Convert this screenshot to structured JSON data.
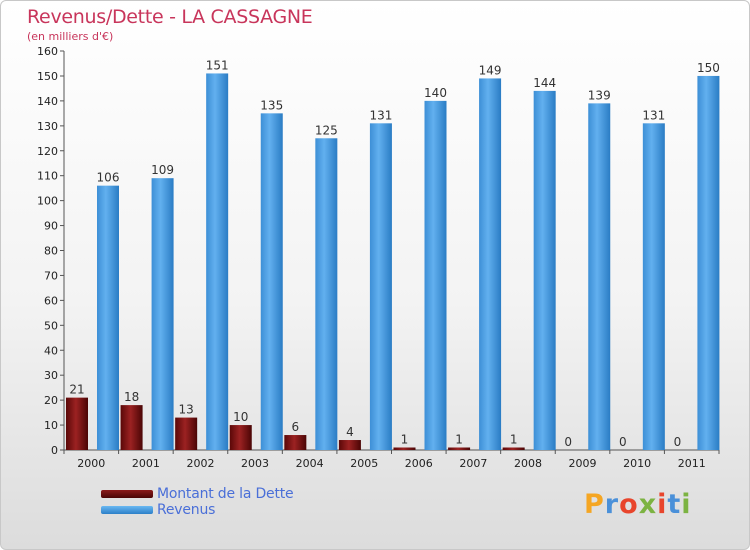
{
  "title": "Revenus/Dette - LA CASSAGNE",
  "subtitle": "(en milliers d'€)",
  "colors": {
    "debt": "#8b1a1a",
    "debt_dark": "#4a0505",
    "revenue": "#5aaaea",
    "revenue_dark": "#2c7fc8",
    "title": "#c8355b",
    "legend_text": "#4a6fd8"
  },
  "chart_data": {
    "type": "bar",
    "categories": [
      "2000",
      "2001",
      "2002",
      "2003",
      "2004",
      "2005",
      "2006",
      "2007",
      "2008",
      "2009",
      "2010",
      "2011"
    ],
    "series": [
      {
        "name": "Montant de la Dette",
        "values": [
          21,
          18,
          13,
          10,
          6,
          4,
          1,
          1,
          1,
          0,
          0,
          0
        ]
      },
      {
        "name": "Revenus",
        "values": [
          106,
          109,
          151,
          135,
          125,
          131,
          140,
          149,
          144,
          139,
          131,
          150
        ]
      }
    ],
    "ylim": [
      0,
      160
    ],
    "ytick_step": 10,
    "grid": false,
    "legend_position": "bottom-left"
  },
  "legend": [
    {
      "label": "Montant de la Dette",
      "color": "#6b0a0a"
    },
    {
      "label": "Revenus",
      "color": "#4a9fe6"
    }
  ],
  "logo": {
    "letters": [
      "P",
      "r",
      "o",
      "x",
      "i",
      "t",
      "i"
    ],
    "colors": [
      "#f5a623",
      "#4a90d9",
      "#e8452c",
      "#7cb342",
      "#e8452c",
      "#4a90d9",
      "#7cb342"
    ]
  }
}
